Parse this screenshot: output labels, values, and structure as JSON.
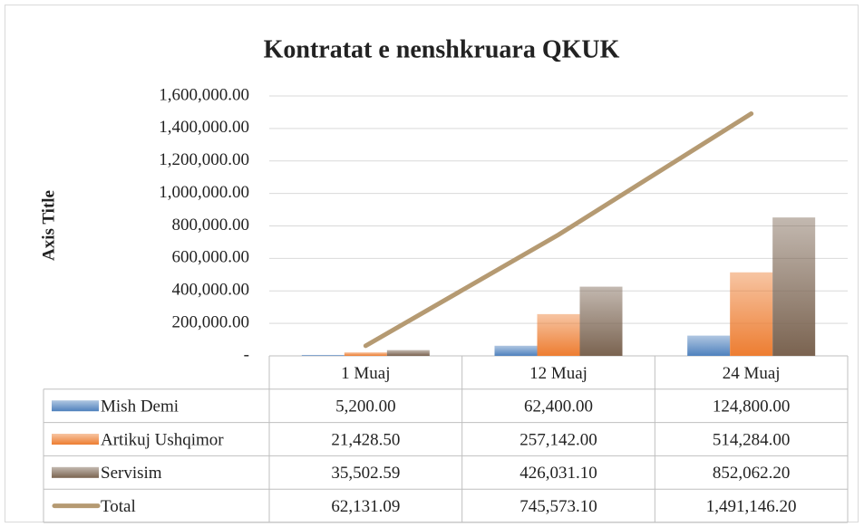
{
  "chart_data": {
    "type": "bar",
    "title": "Kontratat e nenshkruara QKUK",
    "y_axis_title": "Axis Title",
    "categories": [
      "1 Muaj",
      "12 Muaj",
      "24 Muaj"
    ],
    "series": [
      {
        "name": "Mish Demi",
        "type": "bar",
        "color": "#4f81bd",
        "values": [
          5200,
          62400,
          124800
        ],
        "value_labels": [
          "5,200.00",
          "62,400.00",
          "124,800.00"
        ]
      },
      {
        "name": "Artikuj Ushqimor",
        "type": "bar",
        "color": "#ed7d31",
        "values": [
          21428.5,
          257142,
          514284
        ],
        "value_labels": [
          "21,428.50",
          "257,142.00",
          "514,284.00"
        ]
      },
      {
        "name": "Servisim",
        "type": "bar",
        "color": "#7a6350",
        "values": [
          35502.59,
          426031.1,
          852062.2
        ],
        "value_labels": [
          "35,502.59",
          "426,031.10",
          "852,062.20"
        ]
      },
      {
        "name": "Total",
        "type": "line",
        "color": "#b59a72",
        "values": [
          62131.09,
          745573.1,
          1491146.2
        ],
        "value_labels": [
          "62,131.09",
          "745,573.10",
          "1,491,146.20"
        ]
      }
    ],
    "ylim": [
      0,
      1600000
    ],
    "yticks": [
      {
        "value": 0,
        "label": "-"
      },
      {
        "value": 200000,
        "label": "200,000.00"
      },
      {
        "value": 400000,
        "label": "400,000.00"
      },
      {
        "value": 600000,
        "label": "600,000.00"
      },
      {
        "value": 800000,
        "label": "800,000.00"
      },
      {
        "value": 1000000,
        "label": "1,000,000.00"
      },
      {
        "value": 1200000,
        "label": "1,200,000.00"
      },
      {
        "value": 1400000,
        "label": "1,400,000.00"
      },
      {
        "value": 1600000,
        "label": "1,600,000.00"
      }
    ],
    "grid": true
  }
}
